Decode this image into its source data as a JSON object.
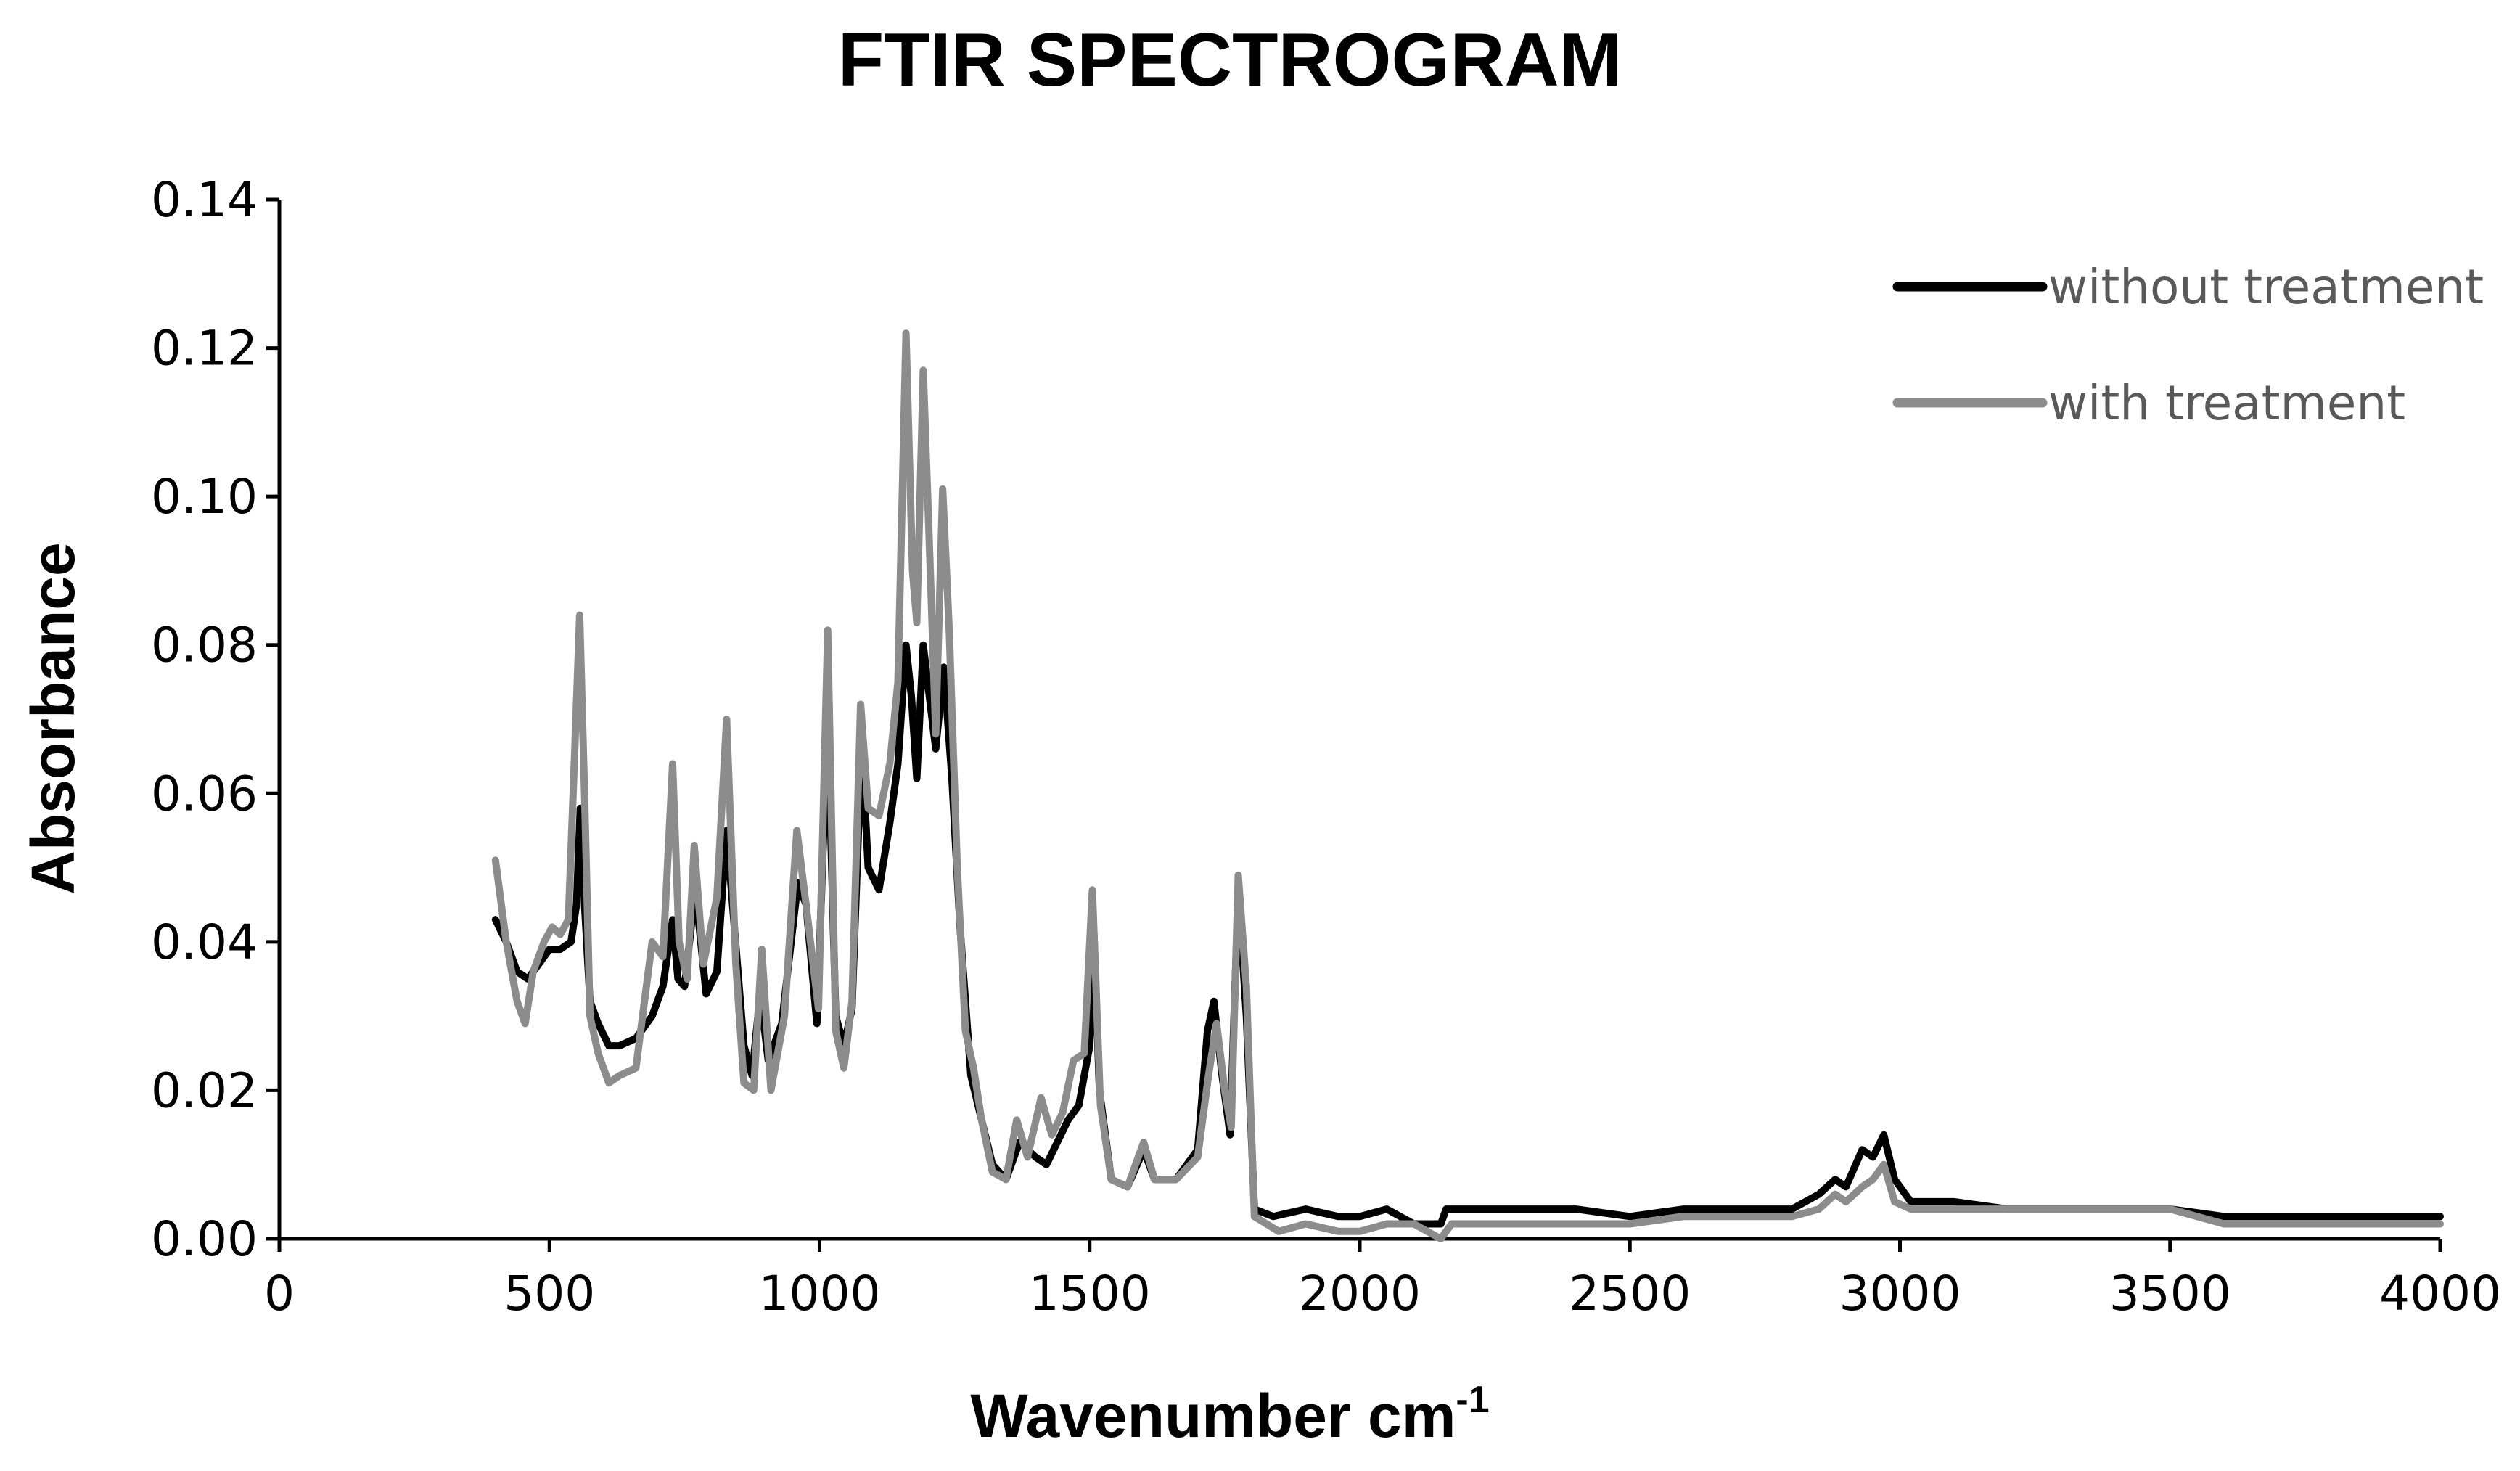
{
  "chart_data": {
    "type": "line",
    "title": "FTIR SPECTROGRAM",
    "xlabel": "Wavenumber cm",
    "xlabel_superscript": "-1",
    "ylabel": "Absorbance",
    "xlim": [
      0,
      4000
    ],
    "ylim": [
      0,
      0.14
    ],
    "x_ticks": [
      "0",
      "500",
      "1000",
      "1500",
      "2000",
      "2500",
      "3000",
      "3500",
      "4000"
    ],
    "x_tick_values": [
      0,
      500,
      1000,
      1500,
      2000,
      2500,
      3000,
      3500,
      4000
    ],
    "y_ticks": [
      "0.00",
      "0.02",
      "0.04",
      "0.06",
      "0.08",
      "0.10",
      "0.12",
      "0.14"
    ],
    "y_tick_values": [
      0,
      0.02,
      0.04,
      0.06,
      0.08,
      0.1,
      0.12,
      0.14
    ],
    "grid": false,
    "legend_position": "top-right",
    "series": [
      {
        "name": "without treatment",
        "color": "#000000",
        "points": [
          [
            400,
            0.043
          ],
          [
            420,
            0.04
          ],
          [
            440,
            0.036
          ],
          [
            460,
            0.035
          ],
          [
            480,
            0.037
          ],
          [
            500,
            0.039
          ],
          [
            520,
            0.039
          ],
          [
            540,
            0.04
          ],
          [
            550,
            0.045
          ],
          [
            557,
            0.058
          ],
          [
            565,
            0.045
          ],
          [
            575,
            0.032
          ],
          [
            590,
            0.029
          ],
          [
            610,
            0.026
          ],
          [
            630,
            0.026
          ],
          [
            660,
            0.027
          ],
          [
            690,
            0.03
          ],
          [
            710,
            0.034
          ],
          [
            728,
            0.043
          ],
          [
            738,
            0.035
          ],
          [
            750,
            0.034
          ],
          [
            770,
            0.047
          ],
          [
            790,
            0.033
          ],
          [
            810,
            0.036
          ],
          [
            828,
            0.055
          ],
          [
            840,
            0.044
          ],
          [
            860,
            0.026
          ],
          [
            875,
            0.022
          ],
          [
            890,
            0.033
          ],
          [
            905,
            0.024
          ],
          [
            930,
            0.029
          ],
          [
            960,
            0.048
          ],
          [
            975,
            0.045
          ],
          [
            995,
            0.029
          ],
          [
            1015,
            0.07
          ],
          [
            1030,
            0.03
          ],
          [
            1045,
            0.026
          ],
          [
            1060,
            0.031
          ],
          [
            1078,
            0.067
          ],
          [
            1090,
            0.05
          ],
          [
            1110,
            0.047
          ],
          [
            1130,
            0.056
          ],
          [
            1145,
            0.064
          ],
          [
            1160,
            0.08
          ],
          [
            1170,
            0.073
          ],
          [
            1180,
            0.062
          ],
          [
            1192,
            0.08
          ],
          [
            1205,
            0.072
          ],
          [
            1215,
            0.066
          ],
          [
            1230,
            0.077
          ],
          [
            1245,
            0.062
          ],
          [
            1260,
            0.042
          ],
          [
            1280,
            0.022
          ],
          [
            1300,
            0.016
          ],
          [
            1320,
            0.01
          ],
          [
            1345,
            0.008
          ],
          [
            1370,
            0.013
          ],
          [
            1400,
            0.011
          ],
          [
            1420,
            0.01
          ],
          [
            1440,
            0.013
          ],
          [
            1460,
            0.016
          ],
          [
            1480,
            0.018
          ],
          [
            1500,
            0.026
          ],
          [
            1508,
            0.041
          ],
          [
            1518,
            0.02
          ],
          [
            1540,
            0.008
          ],
          [
            1570,
            0.007
          ],
          [
            1600,
            0.012
          ],
          [
            1620,
            0.008
          ],
          [
            1660,
            0.008
          ],
          [
            1700,
            0.012
          ],
          [
            1718,
            0.028
          ],
          [
            1730,
            0.032
          ],
          [
            1745,
            0.022
          ],
          [
            1760,
            0.014
          ],
          [
            1775,
            0.047
          ],
          [
            1790,
            0.03
          ],
          [
            1805,
            0.004
          ],
          [
            1840,
            0.003
          ],
          [
            1900,
            0.004
          ],
          [
            1960,
            0.003
          ],
          [
            2000,
            0.003
          ],
          [
            2050,
            0.004
          ],
          [
            2100,
            0.002
          ],
          [
            2150,
            0.002
          ],
          [
            2160,
            0.004
          ],
          [
            2200,
            0.004
          ],
          [
            2300,
            0.004
          ],
          [
            2400,
            0.004
          ],
          [
            2500,
            0.003
          ],
          [
            2600,
            0.004
          ],
          [
            2700,
            0.004
          ],
          [
            2800,
            0.004
          ],
          [
            2850,
            0.006
          ],
          [
            2880,
            0.008
          ],
          [
            2900,
            0.007
          ],
          [
            2930,
            0.012
          ],
          [
            2950,
            0.011
          ],
          [
            2970,
            0.014
          ],
          [
            2990,
            0.008
          ],
          [
            3020,
            0.005
          ],
          [
            3100,
            0.005
          ],
          [
            3200,
            0.004
          ],
          [
            3300,
            0.004
          ],
          [
            3400,
            0.004
          ],
          [
            3500,
            0.004
          ],
          [
            3600,
            0.003
          ],
          [
            3700,
            0.003
          ],
          [
            3800,
            0.003
          ],
          [
            3900,
            0.003
          ],
          [
            4000,
            0.003
          ]
        ]
      },
      {
        "name": "with treatment",
        "color": "#8c8c8c",
        "points": [
          [
            400,
            0.051
          ],
          [
            420,
            0.04
          ],
          [
            440,
            0.032
          ],
          [
            455,
            0.029
          ],
          [
            470,
            0.036
          ],
          [
            490,
            0.04
          ],
          [
            505,
            0.042
          ],
          [
            520,
            0.041
          ],
          [
            535,
            0.043
          ],
          [
            547,
            0.066
          ],
          [
            556,
            0.084
          ],
          [
            565,
            0.06
          ],
          [
            575,
            0.03
          ],
          [
            590,
            0.025
          ],
          [
            610,
            0.021
          ],
          [
            630,
            0.022
          ],
          [
            660,
            0.023
          ],
          [
            690,
            0.04
          ],
          [
            710,
            0.038
          ],
          [
            728,
            0.064
          ],
          [
            740,
            0.04
          ],
          [
            755,
            0.035
          ],
          [
            768,
            0.053
          ],
          [
            785,
            0.037
          ],
          [
            810,
            0.046
          ],
          [
            828,
            0.07
          ],
          [
            845,
            0.037
          ],
          [
            860,
            0.021
          ],
          [
            878,
            0.02
          ],
          [
            893,
            0.039
          ],
          [
            910,
            0.02
          ],
          [
            935,
            0.03
          ],
          [
            958,
            0.055
          ],
          [
            975,
            0.045
          ],
          [
            998,
            0.031
          ],
          [
            1015,
            0.082
          ],
          [
            1030,
            0.028
          ],
          [
            1045,
            0.023
          ],
          [
            1060,
            0.032
          ],
          [
            1076,
            0.072
          ],
          [
            1090,
            0.058
          ],
          [
            1110,
            0.057
          ],
          [
            1130,
            0.064
          ],
          [
            1145,
            0.075
          ],
          [
            1160,
            0.122
          ],
          [
            1172,
            0.09
          ],
          [
            1180,
            0.083
          ],
          [
            1192,
            0.117
          ],
          [
            1205,
            0.09
          ],
          [
            1215,
            0.068
          ],
          [
            1228,
            0.101
          ],
          [
            1240,
            0.082
          ],
          [
            1255,
            0.05
          ],
          [
            1270,
            0.028
          ],
          [
            1285,
            0.023
          ],
          [
            1300,
            0.016
          ],
          [
            1320,
            0.009
          ],
          [
            1345,
            0.008
          ],
          [
            1365,
            0.016
          ],
          [
            1385,
            0.011
          ],
          [
            1410,
            0.019
          ],
          [
            1430,
            0.014
          ],
          [
            1450,
            0.017
          ],
          [
            1470,
            0.024
          ],
          [
            1490,
            0.025
          ],
          [
            1505,
            0.047
          ],
          [
            1520,
            0.018
          ],
          [
            1540,
            0.008
          ],
          [
            1570,
            0.007
          ],
          [
            1600,
            0.013
          ],
          [
            1620,
            0.008
          ],
          [
            1660,
            0.008
          ],
          [
            1700,
            0.011
          ],
          [
            1720,
            0.022
          ],
          [
            1735,
            0.029
          ],
          [
            1750,
            0.02
          ],
          [
            1762,
            0.015
          ],
          [
            1775,
            0.049
          ],
          [
            1790,
            0.034
          ],
          [
            1805,
            0.003
          ],
          [
            1850,
            0.001
          ],
          [
            1900,
            0.002
          ],
          [
            1960,
            0.001
          ],
          [
            2000,
            0.001
          ],
          [
            2050,
            0.002
          ],
          [
            2100,
            0.002
          ],
          [
            2150,
            0.0
          ],
          [
            2170,
            0.002
          ],
          [
            2200,
            0.002
          ],
          [
            2300,
            0.002
          ],
          [
            2400,
            0.002
          ],
          [
            2500,
            0.002
          ],
          [
            2600,
            0.003
          ],
          [
            2700,
            0.003
          ],
          [
            2800,
            0.003
          ],
          [
            2850,
            0.004
          ],
          [
            2880,
            0.006
          ],
          [
            2900,
            0.005
          ],
          [
            2930,
            0.007
          ],
          [
            2950,
            0.008
          ],
          [
            2970,
            0.01
          ],
          [
            2990,
            0.005
          ],
          [
            3020,
            0.004
          ],
          [
            3100,
            0.004
          ],
          [
            3200,
            0.004
          ],
          [
            3300,
            0.004
          ],
          [
            3400,
            0.004
          ],
          [
            3500,
            0.004
          ],
          [
            3600,
            0.002
          ],
          [
            3700,
            0.002
          ],
          [
            3800,
            0.002
          ],
          [
            3900,
            0.002
          ],
          [
            4000,
            0.002
          ]
        ]
      }
    ]
  }
}
